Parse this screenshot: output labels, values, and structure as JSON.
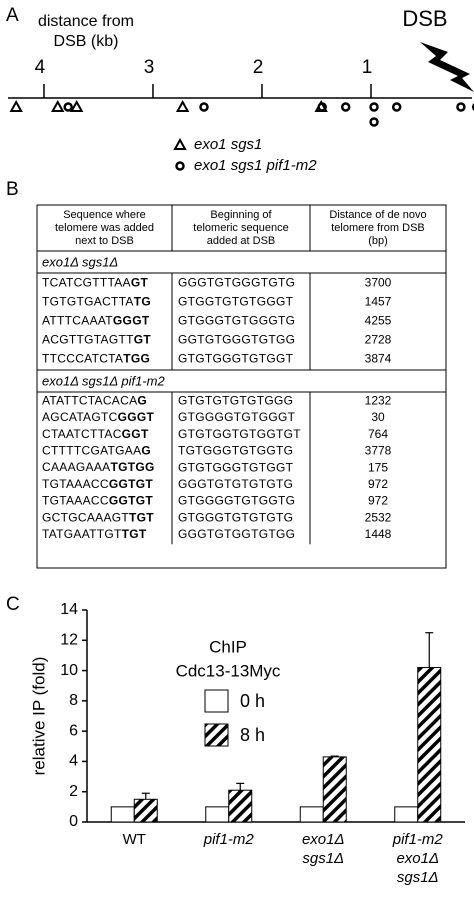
{
  "panel_labels": [
    "A",
    "B",
    "C"
  ],
  "distance_map": {
    "axis_title": [
      "distance from",
      "DSB (kb)"
    ],
    "end_label": "DSB",
    "xlim": [
      4330,
      0
    ],
    "xticks": [
      {
        "value": 4000,
        "label": "4"
      },
      {
        "value": 3000,
        "label": "3"
      },
      {
        "value": 2000,
        "label": "2"
      },
      {
        "value": 1000,
        "label": "1"
      }
    ],
    "legend": [
      {
        "name": "exo1 sgs1",
        "marker": "triangle"
      },
      {
        "name": "exo1 sgs1 pif1-m2",
        "marker": "circle"
      }
    ]
  },
  "table": {
    "header": [
      [
        "Sequence where",
        "telomere was added",
        "next to DSB"
      ],
      [
        "Beginning of",
        "telomeric sequence",
        "added at DSB"
      ],
      [
        "Distance of de novo",
        "telomere from DSB",
        "(bp)"
      ]
    ],
    "groups": [
      {
        "title": "exo1Δ sgs1Δ",
        "rows": [
          {
            "sequence": [
              "TCATCGTTTAA",
              "GT"
            ],
            "telomeric": "GGGTGTGGGTGTG",
            "distance": 3700
          },
          {
            "sequence": [
              "TGTGTGACTTA",
              "TG"
            ],
            "telomeric": "GTGGTGTGTGGGT",
            "distance": 1457
          },
          {
            "sequence": [
              "ATTTCAAAT",
              "GGGT"
            ],
            "telomeric": "GTGGGTGTGGGTG",
            "distance": 4255
          },
          {
            "sequence": [
              "ACGTTGTAGTT",
              "GT"
            ],
            "telomeric": "GGTGTGGGTGTGG",
            "distance": 2728
          },
          {
            "sequence": [
              "TTCCCATCTA",
              "TGG"
            ],
            "telomeric": "GTGTGGGTGTGGT",
            "distance": 3874
          }
        ]
      },
      {
        "title": "exo1Δ sgs1Δ pif1-m2",
        "rows": [
          {
            "sequence": [
              "ATATTCTACACA",
              "G"
            ],
            "telomeric": "GTGTGTGTGTGGG",
            "distance": 1232
          },
          {
            "sequence": [
              "AGCATAGTC",
              "GGGT"
            ],
            "telomeric": "GTGGGGTGTGGGT",
            "distance": 30
          },
          {
            "sequence": [
              "CTAATCTTAC",
              "GGT"
            ],
            "telomeric": "GTGTGGTGTGGTGT",
            "distance": 764
          },
          {
            "sequence": [
              "CTTTTCGATGAA",
              "G"
            ],
            "telomeric": "TGTGGGTGTGGTG",
            "distance": 3778
          },
          {
            "sequence": [
              "CAAAGAAA",
              "TGTGG"
            ],
            "telomeric": "GTGTGGGTGTGGT",
            "distance": 175
          },
          {
            "sequence": [
              "TGTAAACC",
              "GGTGT"
            ],
            "telomeric": "GGGTGTGTGTGTG",
            "distance": 972
          },
          {
            "sequence": [
              "TGTAAACC",
              "GGTGT"
            ],
            "telomeric": "GTGGGGTGTGGTG",
            "distance": 972
          },
          {
            "sequence": [
              "GCTGCAAAGT",
              "TGT"
            ],
            "telomeric": "GTGGGTGTGTGTG",
            "distance": 2532
          },
          {
            "sequence": [
              "TATGAATTGT",
              "TGT"
            ],
            "telomeric": "GGGTGTGGTGTGG",
            "distance": 1448
          }
        ]
      }
    ]
  },
  "chart_data": {
    "type": "bar",
    "ylabel": "relative IP (fold)",
    "legend_title": [
      "ChIP",
      "Cdc13-13Myc"
    ],
    "categories": [
      [
        "WT"
      ],
      [
        "pif1-m2"
      ],
      [
        "exo1Δ",
        "sgs1Δ"
      ],
      [
        "pif1-m2",
        "exo1Δ",
        "sgs1Δ"
      ]
    ],
    "series": [
      {
        "name": "0 h",
        "color": "#ffffff",
        "hatch": false,
        "values": [
          1,
          1,
          1,
          1
        ]
      },
      {
        "name": "8 h",
        "color": "#ffffff",
        "hatch": true,
        "values": [
          1.5,
          2.1,
          4.3,
          10.2
        ],
        "errors": [
          0.4,
          0.45,
          0.05,
          2.3
        ]
      }
    ],
    "ylim": [
      0,
      14
    ],
    "yticks": [
      0,
      2,
      4,
      6,
      8,
      10,
      12,
      14
    ]
  }
}
